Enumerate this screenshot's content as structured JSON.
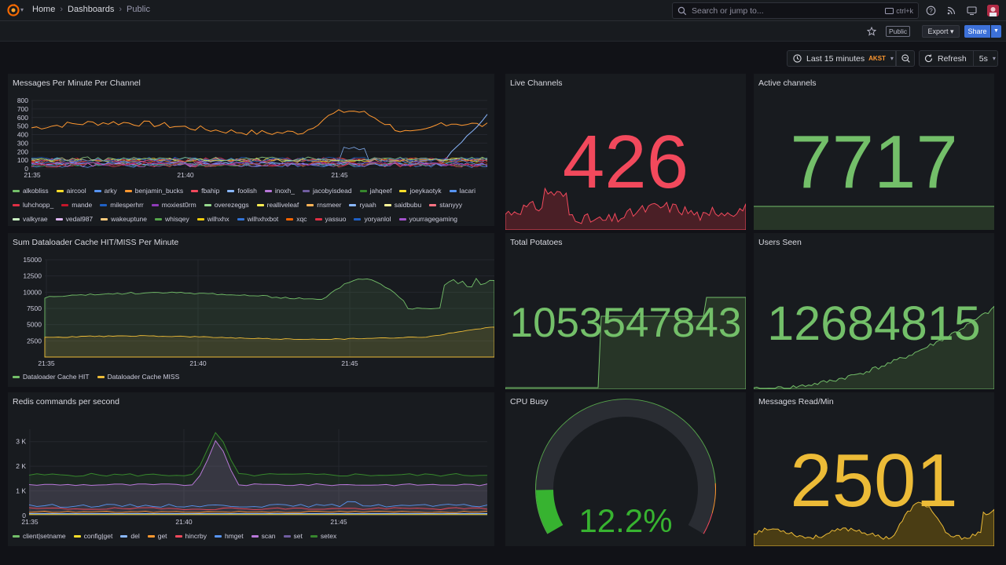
{
  "topbar": {
    "breadcrumbs": [
      "Home",
      "Dashboards",
      "Public"
    ],
    "search_placeholder": "Search or jump to...",
    "search_shortcut": "ctrl+k"
  },
  "subbar": {
    "public_tag": "Public",
    "export_label": "Export",
    "share_label": "Share"
  },
  "time": {
    "range_label": "Last 15 minutes",
    "timezone": "AKST",
    "refresh_label": "Refresh",
    "interval": "5s"
  },
  "colors": {
    "red": "#f2495c",
    "green": "#73bf69",
    "yellow": "#fade2a",
    "orange": "#ff9830",
    "blue": "#5794f2",
    "purple": "#b877d9",
    "gold": "#ecbb37"
  },
  "panels": {
    "messages_per_minute": {
      "title": "Messages Per Minute Per Channel",
      "chart_data": {
        "type": "line",
        "x_ticks": [
          "21:35",
          "21:40",
          "21:45"
        ],
        "y_ticks": [
          "0",
          "100",
          "200",
          "300",
          "400",
          "500",
          "600",
          "700",
          "800"
        ],
        "ylim": [
          0,
          800
        ],
        "legend": [
          "alkobliss",
          "aircool",
          "arky",
          "benjamin_bucks",
          "fbahip",
          "foolish",
          "inoxh_",
          "jacobyisdead",
          "jahqeef",
          "joeykaotyk",
          "lacari",
          "luhchopp_",
          "mande",
          "milesperhrr",
          "moxiest0rm",
          "overezeggs",
          "realliveleaf",
          "rnsmeer",
          "ryaah",
          "saidbubu",
          "stanyyy",
          "valkyrae",
          "vedal987",
          "wakeuptune",
          "whisqey",
          "wilhxhx",
          "wilhxhxbot",
          "xqc",
          "yassuo",
          "yoryanlol",
          "yourragegaming"
        ]
      }
    },
    "live_channels": {
      "title": "Live Channels",
      "value": "426"
    },
    "active_channels": {
      "title": "Active channels",
      "value": "7717"
    },
    "dataloader": {
      "title": "Sum Dataloader Cache HIT/MISS Per Minute",
      "chart_data": {
        "type": "area",
        "x_ticks": [
          "21:35",
          "21:40",
          "21:45"
        ],
        "y_ticks": [
          "2500",
          "5000",
          "7500",
          "10000",
          "12500",
          "15000"
        ],
        "ylim": [
          0,
          15000
        ],
        "series": [
          {
            "name": "Dataloader Cache HIT"
          },
          {
            "name": "Dataloader Cache MISS"
          }
        ]
      }
    },
    "total_potatoes": {
      "title": "Total Potatoes",
      "value": "1053547843"
    },
    "users_seen": {
      "title": "Users Seen",
      "value": "12684815"
    },
    "redis": {
      "title": "Redis commands per second",
      "chart_data": {
        "type": "area",
        "x_ticks": [
          "21:35",
          "21:40",
          "21:45"
        ],
        "y_ticks": [
          "0",
          "1 K",
          "2 K",
          "3 K"
        ],
        "ylim": [
          0,
          3500
        ],
        "legend": [
          "client|setname",
          "config|get",
          "del",
          "get",
          "hincrby",
          "hmget",
          "scan",
          "set",
          "setex"
        ]
      }
    },
    "cpu_busy": {
      "title": "CPU Busy",
      "value": "12.2%",
      "fraction": 0.122
    },
    "messages_read": {
      "title": "Messages Read/Min",
      "value": "2501"
    }
  }
}
